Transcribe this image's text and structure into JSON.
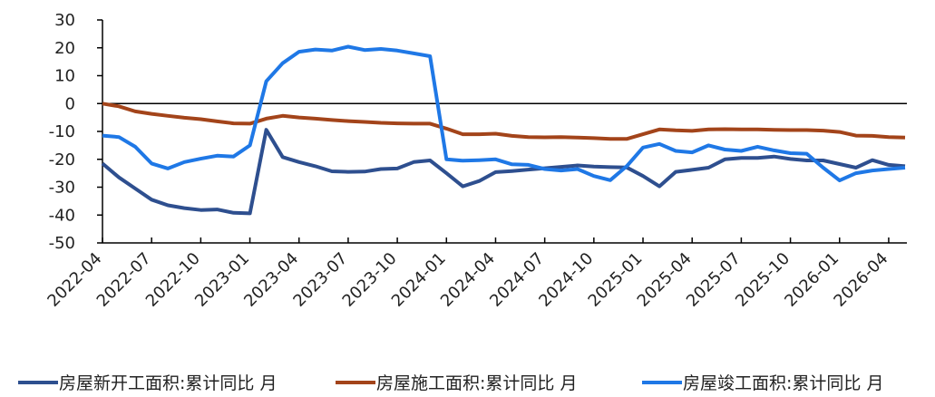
{
  "chart_data": {
    "type": "line",
    "categories": [
      "2022-04",
      null,
      null,
      "2022-07",
      null,
      null,
      "2022-10",
      null,
      null,
      "2023-01",
      null,
      null,
      "2023-04",
      null,
      null,
      "2023-07",
      null,
      null,
      "2023-10",
      null,
      null,
      "2024-01",
      null,
      null,
      "2024-04",
      null,
      null,
      "2024-07",
      null,
      null,
      "2024-10",
      null,
      null,
      "2025-01",
      null,
      null,
      "2025-04",
      null,
      null,
      "2025-07",
      null,
      null,
      "2025-10",
      null,
      null,
      "2026-01",
      null,
      null,
      "2026-04",
      null
    ],
    "series": [
      {
        "name": "房屋新开工面积:累计同比 月",
        "color": "#2e4f8f",
        "values": [
          -21.5,
          -26.5,
          -30.5,
          -34.5,
          -36.5,
          -37.5,
          -38.2,
          -38,
          -39.2,
          -39.4,
          -9.4,
          -19.2,
          -21,
          -22.5,
          -24.3,
          -24.5,
          -24.4,
          -23.5,
          -23.3,
          -21,
          -20.4,
          -25,
          -29.7,
          -27.8,
          -24.6,
          -24.2,
          -23.7,
          -23.2,
          -22.7,
          -22.2,
          -22.6,
          -22.8,
          -22.9,
          -26,
          -29.7,
          -24.5,
          -23.8,
          -23,
          -20,
          -19.5,
          -19.5,
          -19,
          -19.9,
          -20.4,
          -20.4,
          -21.7,
          -23,
          -20.3,
          -22,
          -22.5
        ]
      },
      {
        "name": "房屋施工面积:累计同比 月",
        "color": "#a3441a",
        "values": [
          0,
          -1,
          -2.8,
          -3.7,
          -4.4,
          -5.1,
          -5.6,
          -6.4,
          -7.1,
          -7.2,
          -5.4,
          -4.4,
          -5,
          -5.4,
          -5.9,
          -6.3,
          -6.6,
          -6.9,
          -7.1,
          -7.2,
          -7.2,
          -9,
          -11,
          -11,
          -10.8,
          -11.6,
          -12,
          -12.1,
          -12,
          -12.2,
          -12.4,
          -12.7,
          -12.7,
          -11,
          -9.3,
          -9.6,
          -9.8,
          -9.3,
          -9.2,
          -9.3,
          -9.3,
          -9.4,
          -9.5,
          -9.5,
          -9.7,
          -10.2,
          -11.5,
          -11.6,
          -12,
          -12.2
        ]
      },
      {
        "name": "房屋竣工面积:累计同比 月",
        "color": "#1f78e6",
        "values": [
          -11.5,
          -12,
          -15.5,
          -21.5,
          -23.3,
          -21,
          -19.8,
          -18.7,
          -19,
          -15,
          8,
          14.5,
          18.6,
          19.4,
          19,
          20.4,
          19.2,
          19.6,
          19,
          18,
          17,
          -20,
          -20.5,
          -20.3,
          -20,
          -21.8,
          -22,
          -23.5,
          -24,
          -23.5,
          -26,
          -27.5,
          -22.5,
          -15.8,
          -14.5,
          -17,
          -17.5,
          -15,
          -16.5,
          -17,
          -15.5,
          -16.8,
          -17.8,
          -18,
          -23,
          -27.6,
          -25,
          -24,
          -23.5,
          -23
        ]
      }
    ],
    "ylim": [
      -50,
      30
    ],
    "yticks": [
      -50,
      -40,
      -30,
      -20,
      -10,
      0,
      10,
      20,
      30
    ],
    "grid": false
  }
}
